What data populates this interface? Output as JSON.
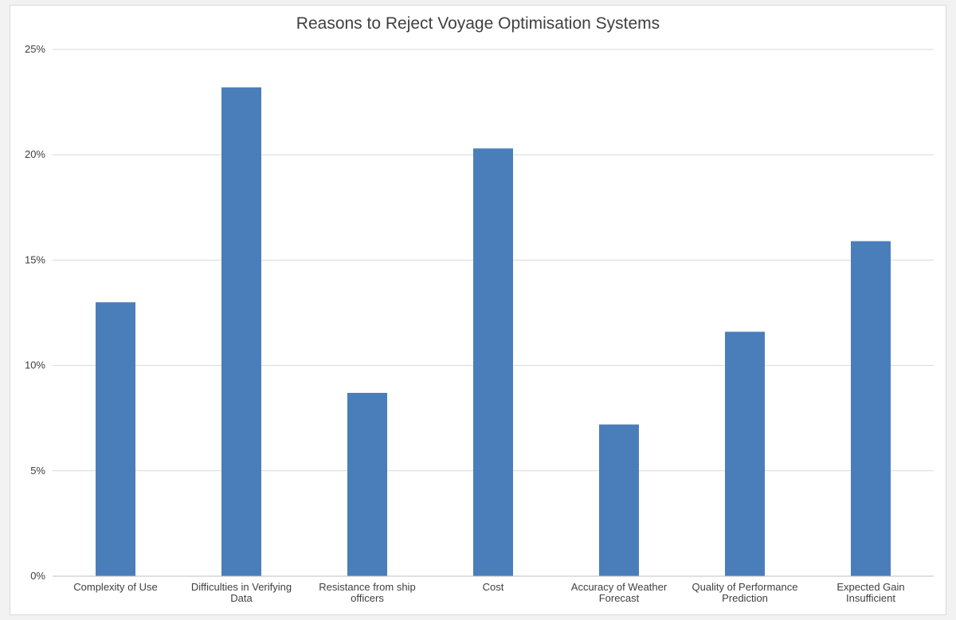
{
  "chart_data": {
    "type": "bar",
    "title": "Reasons to Reject Voyage Optimisation Systems",
    "xlabel": "",
    "ylabel": "",
    "categories": [
      [
        "Complexity of Use"
      ],
      [
        "Difficulties in Verifying",
        "Data"
      ],
      [
        "Resistance from ship",
        "officers"
      ],
      [
        "Cost"
      ],
      [
        "Accuracy of Weather",
        "Forecast"
      ],
      [
        "Quality of Performance",
        "Prediction"
      ],
      [
        "Expected Gain",
        "Insufficient"
      ]
    ],
    "values": [
      13.0,
      23.2,
      8.7,
      20.3,
      7.2,
      11.6,
      15.9
    ],
    "ylim": [
      0,
      25
    ],
    "yticks": [
      "0%",
      "5%",
      "10%",
      "15%",
      "20%",
      "25%"
    ],
    "grid": true,
    "legend": "none",
    "bar_color": "#4a7ebb",
    "grid_color": "#d9d9d9"
  }
}
